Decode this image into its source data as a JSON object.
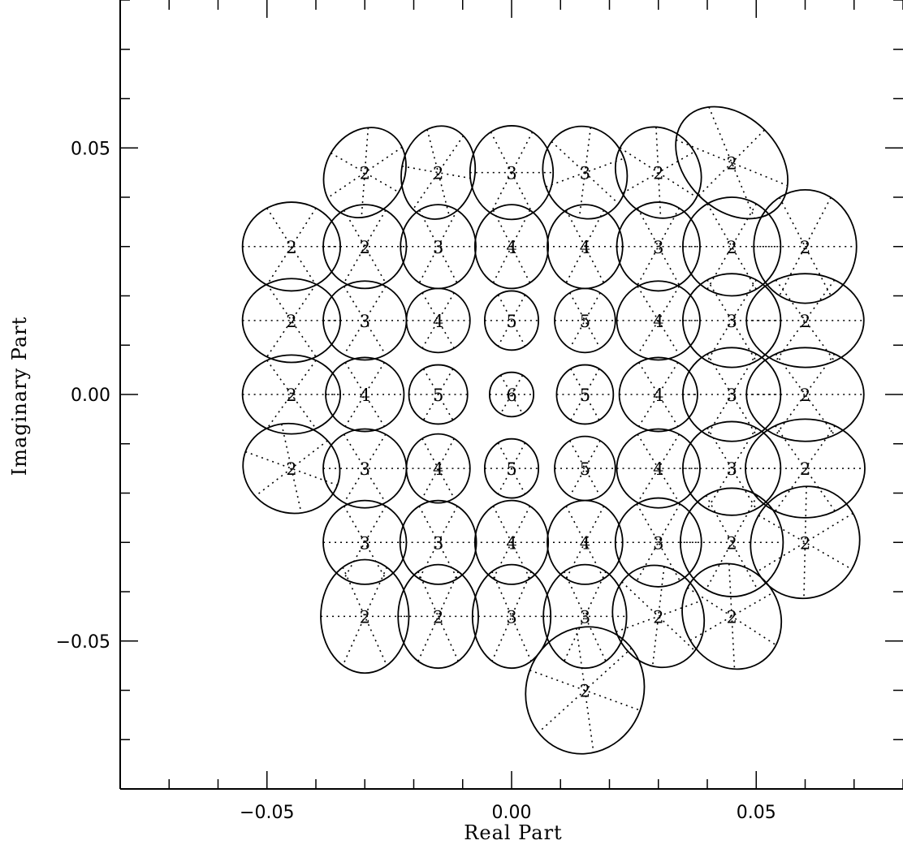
{
  "chart_data": {
    "type": "scatter",
    "title": "",
    "xlabel": "Real Part",
    "ylabel": "Imaginary Part",
    "xlim": [
      -0.08,
      0.08
    ],
    "ylim": [
      -0.08,
      0.08
    ],
    "x_major_ticks": [
      -0.05,
      0.0,
      0.05
    ],
    "x_tick_labels": [
      "−0.05",
      "0.00",
      "0.05"
    ],
    "y_major_ticks": [
      -0.05,
      0.0,
      0.05
    ],
    "y_tick_labels": [
      "−0.05",
      "0.00",
      "0.05"
    ],
    "minor_tick_step": 0.01,
    "grid": false,
    "points": [
      {
        "x": -0.03,
        "y": 0.045,
        "label": "2",
        "rx": 0.008,
        "ry": 0.0095,
        "angle": -30
      },
      {
        "x": -0.015,
        "y": 0.045,
        "label": "2",
        "rx": 0.0075,
        "ry": 0.0095,
        "angle": -10
      },
      {
        "x": 0.0,
        "y": 0.045,
        "label": "3",
        "rx": 0.0085,
        "ry": 0.0095,
        "angle": 0
      },
      {
        "x": 0.015,
        "y": 0.045,
        "label": "3",
        "rx": 0.0085,
        "ry": 0.0095,
        "angle": 20
      },
      {
        "x": 0.03,
        "y": 0.045,
        "label": "2",
        "rx": 0.0085,
        "ry": 0.0095,
        "angle": 30
      },
      {
        "x": 0.045,
        "y": 0.047,
        "label": "2",
        "rx": 0.0095,
        "ry": 0.013,
        "angle": 45
      },
      {
        "x": -0.045,
        "y": 0.03,
        "label": "2",
        "rx": 0.01,
        "ry": 0.009,
        "angle": 0
      },
      {
        "x": -0.03,
        "y": 0.03,
        "label": "2",
        "rx": 0.0085,
        "ry": 0.0085,
        "angle": 0
      },
      {
        "x": -0.015,
        "y": 0.03,
        "label": "3",
        "rx": 0.0077,
        "ry": 0.0085,
        "angle": 0
      },
      {
        "x": 0.0,
        "y": 0.03,
        "label": "4",
        "rx": 0.0075,
        "ry": 0.0085,
        "angle": 0
      },
      {
        "x": 0.015,
        "y": 0.03,
        "label": "4",
        "rx": 0.0077,
        "ry": 0.0085,
        "angle": 0
      },
      {
        "x": 0.03,
        "y": 0.03,
        "label": "3",
        "rx": 0.0085,
        "ry": 0.009,
        "angle": 0
      },
      {
        "x": 0.045,
        "y": 0.03,
        "label": "2",
        "rx": 0.01,
        "ry": 0.01,
        "angle": 0
      },
      {
        "x": 0.06,
        "y": 0.03,
        "label": "2",
        "rx": 0.0105,
        "ry": 0.0115,
        "angle": 0
      },
      {
        "x": -0.045,
        "y": 0.015,
        "label": "2",
        "rx": 0.01,
        "ry": 0.0085,
        "angle": 0
      },
      {
        "x": -0.03,
        "y": 0.015,
        "label": "3",
        "rx": 0.0085,
        "ry": 0.008,
        "angle": 0
      },
      {
        "x": -0.015,
        "y": 0.015,
        "label": "4",
        "rx": 0.0065,
        "ry": 0.0065,
        "angle": 0
      },
      {
        "x": 0.0,
        "y": 0.015,
        "label": "5",
        "rx": 0.0055,
        "ry": 0.006,
        "angle": 0
      },
      {
        "x": 0.015,
        "y": 0.015,
        "label": "5",
        "rx": 0.0062,
        "ry": 0.0065,
        "angle": 0
      },
      {
        "x": 0.03,
        "y": 0.015,
        "label": "4",
        "rx": 0.0085,
        "ry": 0.008,
        "angle": 0
      },
      {
        "x": 0.045,
        "y": 0.015,
        "label": "3",
        "rx": 0.01,
        "ry": 0.0095,
        "angle": 0
      },
      {
        "x": 0.06,
        "y": 0.015,
        "label": "2",
        "rx": 0.012,
        "ry": 0.0095,
        "angle": 0
      },
      {
        "x": -0.045,
        "y": 0.0,
        "label": "2",
        "rx": 0.01,
        "ry": 0.008,
        "angle": 0
      },
      {
        "x": -0.03,
        "y": 0.0,
        "label": "4",
        "rx": 0.008,
        "ry": 0.0075,
        "angle": 0
      },
      {
        "x": -0.015,
        "y": 0.0,
        "label": "5",
        "rx": 0.006,
        "ry": 0.006,
        "angle": 0
      },
      {
        "x": 0.0,
        "y": 0.0,
        "label": "6",
        "rx": 0.0045,
        "ry": 0.0045,
        "angle": 0
      },
      {
        "x": 0.015,
        "y": 0.0,
        "label": "5",
        "rx": 0.0058,
        "ry": 0.006,
        "angle": 0
      },
      {
        "x": 0.03,
        "y": 0.0,
        "label": "4",
        "rx": 0.008,
        "ry": 0.0075,
        "angle": 0
      },
      {
        "x": 0.045,
        "y": 0.0,
        "label": "3",
        "rx": 0.01,
        "ry": 0.0095,
        "angle": 0
      },
      {
        "x": 0.06,
        "y": 0.0,
        "label": "2",
        "rx": 0.012,
        "ry": 0.0095,
        "angle": 0
      },
      {
        "x": -0.045,
        "y": -0.015,
        "label": "2",
        "rx": 0.01,
        "ry": 0.009,
        "angle": -20
      },
      {
        "x": -0.03,
        "y": -0.015,
        "label": "3",
        "rx": 0.0085,
        "ry": 0.008,
        "angle": 0
      },
      {
        "x": -0.015,
        "y": -0.015,
        "label": "4",
        "rx": 0.0065,
        "ry": 0.007,
        "angle": 0
      },
      {
        "x": 0.0,
        "y": -0.015,
        "label": "5",
        "rx": 0.0055,
        "ry": 0.006,
        "angle": 0
      },
      {
        "x": 0.015,
        "y": -0.015,
        "label": "5",
        "rx": 0.0062,
        "ry": 0.0065,
        "angle": 0
      },
      {
        "x": 0.03,
        "y": -0.015,
        "label": "4",
        "rx": 0.0085,
        "ry": 0.008,
        "angle": 0
      },
      {
        "x": 0.045,
        "y": -0.015,
        "label": "3",
        "rx": 0.01,
        "ry": 0.0095,
        "angle": 0
      },
      {
        "x": 0.06,
        "y": -0.015,
        "label": "2",
        "rx": 0.0122,
        "ry": 0.01,
        "angle": 0
      },
      {
        "x": -0.03,
        "y": -0.03,
        "label": "3",
        "rx": 0.0085,
        "ry": 0.0085,
        "angle": 0
      },
      {
        "x": -0.015,
        "y": -0.03,
        "label": "3",
        "rx": 0.0078,
        "ry": 0.0085,
        "angle": 0
      },
      {
        "x": 0.0,
        "y": -0.03,
        "label": "4",
        "rx": 0.0075,
        "ry": 0.0085,
        "angle": 0
      },
      {
        "x": 0.015,
        "y": -0.03,
        "label": "4",
        "rx": 0.0077,
        "ry": 0.0085,
        "angle": 0
      },
      {
        "x": 0.03,
        "y": -0.03,
        "label": "3",
        "rx": 0.0088,
        "ry": 0.009,
        "angle": 0
      },
      {
        "x": 0.045,
        "y": -0.03,
        "label": "2",
        "rx": 0.0105,
        "ry": 0.011,
        "angle": 0
      },
      {
        "x": 0.06,
        "y": -0.03,
        "label": "2",
        "rx": 0.011,
        "ry": 0.0115,
        "angle": -30
      },
      {
        "x": -0.03,
        "y": -0.045,
        "label": "2",
        "rx": 0.009,
        "ry": 0.0115,
        "angle": 0
      },
      {
        "x": -0.015,
        "y": -0.045,
        "label": "2",
        "rx": 0.0082,
        "ry": 0.0105,
        "angle": 0
      },
      {
        "x": 0.0,
        "y": -0.045,
        "label": "3",
        "rx": 0.008,
        "ry": 0.0105,
        "angle": 0
      },
      {
        "x": 0.015,
        "y": -0.045,
        "label": "3",
        "rx": 0.0085,
        "ry": 0.0105,
        "angle": 0
      },
      {
        "x": 0.03,
        "y": -0.045,
        "label": "2",
        "rx": 0.0092,
        "ry": 0.0105,
        "angle": 20
      },
      {
        "x": 0.045,
        "y": -0.045,
        "label": "2",
        "rx": 0.0098,
        "ry": 0.011,
        "angle": 30
      },
      {
        "x": 0.015,
        "y": -0.06,
        "label": "2",
        "rx": 0.012,
        "ry": 0.013,
        "angle": -20
      }
    ]
  }
}
